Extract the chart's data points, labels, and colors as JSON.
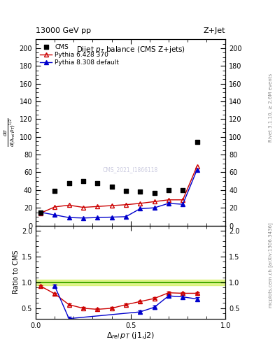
{
  "title_top_left": "13000 GeV pp",
  "title_top_right": "Z+Jet",
  "plot_title": "Dijet $p_T$ balance (CMS Z+jets)",
  "xlabel": "$\\Delta_{rel}\\,p_T$ (j1,j2)",
  "ylabel_main": "$\\frac{d\\sigma}{d(\\Delta_{rel}\\,p_T)^{1/2}}$",
  "ylabel_ratio": "Ratio to CMS",
  "watermark": "CMS_2021_I1866118",
  "cms_x": [
    0.025,
    0.1,
    0.175,
    0.25,
    0.325,
    0.4,
    0.475,
    0.55,
    0.625,
    0.7,
    0.775,
    0.85
  ],
  "cms_y": [
    15.0,
    39.0,
    47.5,
    50.0,
    47.5,
    43.5,
    39.0,
    38.0,
    36.5,
    40.0,
    40.0,
    94.5
  ],
  "py6_x": [
    0.025,
    0.1,
    0.175,
    0.25,
    0.325,
    0.4,
    0.475,
    0.55,
    0.625,
    0.7,
    0.775,
    0.85
  ],
  "py6_y": [
    14.0,
    21.0,
    23.0,
    20.5,
    21.5,
    22.5,
    23.5,
    25.0,
    27.0,
    29.0,
    29.0,
    67.0
  ],
  "py8_x": [
    0.025,
    0.1,
    0.175,
    0.25,
    0.325,
    0.4,
    0.475,
    0.55,
    0.625,
    0.7,
    0.775,
    0.85
  ],
  "py8_y": [
    15.0,
    12.0,
    9.0,
    8.5,
    9.0,
    9.5,
    10.0,
    19.0,
    20.0,
    25.0,
    24.0,
    63.0
  ],
  "ratio_py6_x": [
    0.025,
    0.1,
    0.175,
    0.25,
    0.325,
    0.4,
    0.475,
    0.55,
    0.625,
    0.7,
    0.775,
    0.85
  ],
  "ratio_py6_y": [
    0.93,
    0.78,
    0.57,
    0.5,
    0.48,
    0.5,
    0.57,
    0.63,
    0.69,
    0.8,
    0.79,
    0.79
  ],
  "ratio_py6_err": [
    0.02,
    0.02,
    0.02,
    0.02,
    0.02,
    0.02,
    0.02,
    0.02,
    0.02,
    0.02,
    0.02,
    0.02
  ],
  "ratio_py8_x": [
    0.1,
    0.175,
    0.55,
    0.625,
    0.7,
    0.775,
    0.85
  ],
  "ratio_py8_y": [
    0.93,
    0.3,
    0.43,
    0.52,
    0.74,
    0.72,
    0.68
  ],
  "ratio_py8_err": [
    0.03,
    0.03,
    0.03,
    0.03,
    0.03,
    0.03,
    0.03
  ],
  "xlim": [
    0.0,
    1.0
  ],
  "ylim_main": [
    0,
    210
  ],
  "ylim_ratio": [
    0.3,
    2.1
  ],
  "yticks_main": [
    0,
    20,
    40,
    60,
    80,
    100,
    120,
    140,
    160,
    180,
    200
  ],
  "yticks_ratio": [
    0.5,
    1.0,
    1.5,
    2.0
  ],
  "xticks": [
    0.0,
    0.5,
    1.0
  ],
  "cms_color": "#000000",
  "py6_color": "#cc0000",
  "py8_color": "#0000cc",
  "ref_band_color": "#ccee44",
  "ref_line_color": "#44aa00",
  "right_text_main": "Rivet 3.1.10, ≥ 2.6M events",
  "right_text_ratio": "mcplots.cern.ch [arXiv:1306.3436]"
}
